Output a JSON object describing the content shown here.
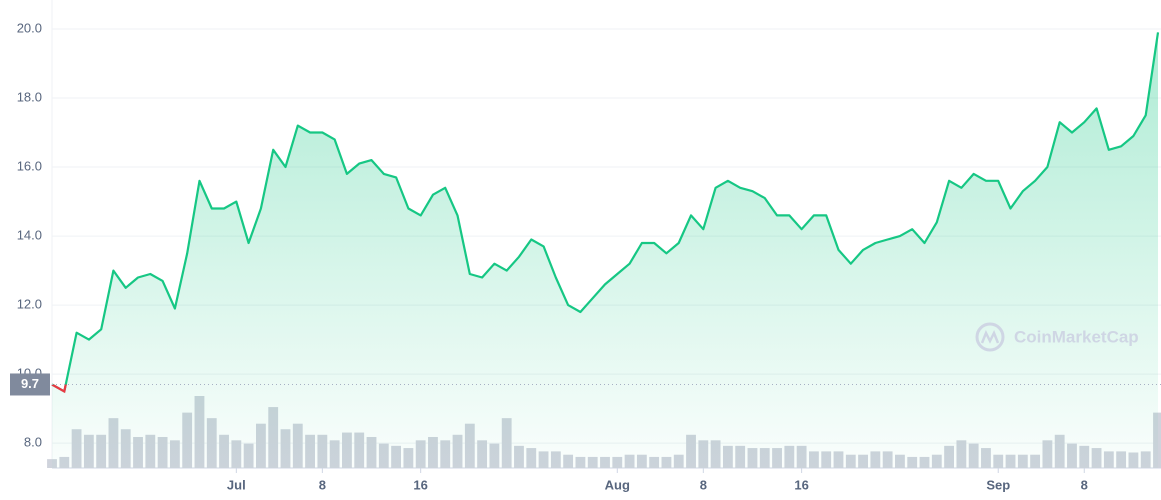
{
  "chart_data": {
    "type": "line",
    "watermark": "CoinMarketCap",
    "color": "#16c784",
    "below_color": "#ea3943",
    "volume_color": "#cfd3dc",
    "grid": true,
    "reference": {
      "value": 9.7,
      "label": "9.7"
    },
    "ylim": [
      7.28,
      20.84
    ],
    "yticks": [
      {
        "value": 8,
        "label": "8.0"
      },
      {
        "value": 10,
        "label": "10.0"
      },
      {
        "value": 12,
        "label": "12.0"
      },
      {
        "value": 14,
        "label": "14.0"
      },
      {
        "value": 16,
        "label": "16.0"
      },
      {
        "value": 18,
        "label": "18.0"
      },
      {
        "value": 20,
        "label": "20.0"
      }
    ],
    "xticks": [
      {
        "value": "Jul 1",
        "label": "Jul"
      },
      {
        "value": "Jul 8",
        "label": "8"
      },
      {
        "value": "Jul 16",
        "label": "16"
      },
      {
        "value": "Aug 1",
        "label": "Aug"
      },
      {
        "value": "Aug 8",
        "label": "8"
      },
      {
        "value": "Aug 16",
        "label": "16"
      },
      {
        "value": "Sep 1",
        "label": "Sep"
      },
      {
        "value": "Sep 8",
        "label": "8"
      }
    ],
    "x": [
      "Jun 16",
      "Jun 17",
      "Jun 18",
      "Jun 19",
      "Jun 20",
      "Jun 21",
      "Jun 22",
      "Jun 23",
      "Jun 24",
      "Jun 25",
      "Jun 26",
      "Jun 27",
      "Jun 28",
      "Jun 29",
      "Jun 30",
      "Jul 1",
      "Jul 2",
      "Jul 3",
      "Jul 4",
      "Jul 5",
      "Jul 6",
      "Jul 7",
      "Jul 8",
      "Jul 9",
      "Jul 10",
      "Jul 11",
      "Jul 12",
      "Jul 13",
      "Jul 14",
      "Jul 15",
      "Jul 16",
      "Jul 17",
      "Jul 18",
      "Jul 19",
      "Jul 20",
      "Jul 21",
      "Jul 22",
      "Jul 23",
      "Jul 24",
      "Jul 25",
      "Jul 26",
      "Jul 27",
      "Jul 28",
      "Jul 29",
      "Jul 30",
      "Jul 31",
      "Aug 1",
      "Aug 2",
      "Aug 3",
      "Aug 4",
      "Aug 5",
      "Aug 6",
      "Aug 7",
      "Aug 8",
      "Aug 9",
      "Aug 10",
      "Aug 11",
      "Aug 12",
      "Aug 13",
      "Aug 14",
      "Aug 15",
      "Aug 16",
      "Aug 17",
      "Aug 18",
      "Aug 19",
      "Aug 20",
      "Aug 21",
      "Aug 22",
      "Aug 23",
      "Aug 24",
      "Aug 25",
      "Aug 26",
      "Aug 27",
      "Aug 28",
      "Aug 29",
      "Aug 30",
      "Aug 31",
      "Sep 1",
      "Sep 2",
      "Sep 3",
      "Sep 4",
      "Sep 5",
      "Sep 6",
      "Sep 7",
      "Sep 8",
      "Sep 9",
      "Sep 10",
      "Sep 11",
      "Sep 12",
      "Sep 13",
      "Sep 14"
    ],
    "values": [
      9.7,
      9.5,
      11.2,
      11.0,
      11.3,
      13.0,
      12.5,
      12.8,
      12.9,
      12.7,
      11.9,
      13.5,
      15.6,
      14.8,
      14.8,
      15.0,
      13.8,
      14.8,
      16.5,
      16.0,
      17.2,
      17.0,
      17.0,
      16.8,
      15.8,
      16.1,
      16.2,
      15.8,
      15.7,
      14.8,
      14.6,
      15.2,
      15.4,
      14.6,
      12.9,
      12.8,
      13.2,
      13.0,
      13.4,
      13.9,
      13.7,
      12.8,
      12.0,
      11.8,
      12.2,
      12.6,
      12.9,
      13.2,
      13.8,
      13.8,
      13.5,
      13.8,
      14.6,
      14.2,
      15.4,
      15.6,
      15.4,
      15.3,
      15.1,
      14.6,
      14.6,
      14.2,
      14.6,
      14.6,
      13.6,
      13.2,
      13.6,
      13.8,
      13.9,
      14.0,
      14.2,
      13.8,
      14.4,
      15.6,
      15.4,
      15.8,
      15.6,
      15.6,
      14.8,
      15.3,
      15.6,
      16.0,
      17.3,
      17.0,
      17.3,
      17.7,
      16.5,
      16.6,
      16.9,
      17.5,
      19.9
    ],
    "volume": [
      8,
      10,
      35,
      30,
      30,
      45,
      35,
      28,
      30,
      28,
      25,
      50,
      65,
      45,
      30,
      25,
      22,
      40,
      55,
      35,
      40,
      30,
      30,
      25,
      32,
      32,
      28,
      22,
      20,
      18,
      25,
      28,
      25,
      30,
      40,
      25,
      22,
      45,
      20,
      18,
      15,
      15,
      12,
      10,
      10,
      10,
      10,
      12,
      12,
      10,
      10,
      12,
      30,
      25,
      25,
      20,
      20,
      18,
      18,
      18,
      20,
      20,
      15,
      15,
      15,
      12,
      12,
      15,
      15,
      12,
      10,
      10,
      12,
      20,
      25,
      22,
      18,
      12,
      12,
      12,
      12,
      25,
      30,
      22,
      20,
      18,
      15,
      15,
      14,
      15,
      50
    ]
  }
}
